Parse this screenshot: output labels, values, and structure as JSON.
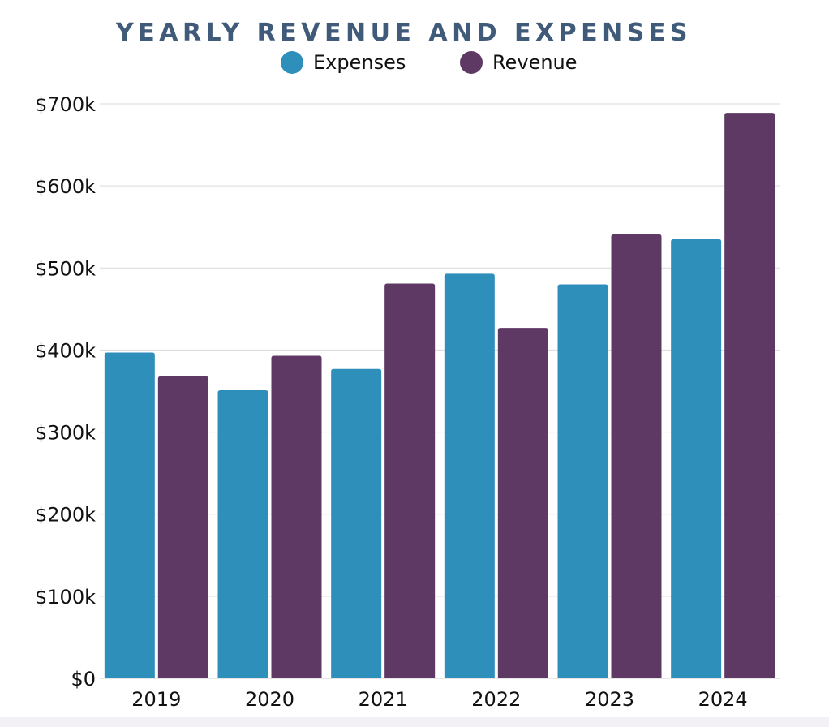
{
  "chart_data": {
    "type": "bar",
    "title": "YEARLY REVENUE AND EXPENSES",
    "categories": [
      "2019",
      "2020",
      "2021",
      "2022",
      "2023",
      "2024"
    ],
    "series": [
      {
        "name": "Expenses",
        "color": "#2e8fba",
        "values": [
          397,
          351,
          377,
          493,
          480,
          535
        ]
      },
      {
        "name": "Revenue",
        "color": "#5d3963",
        "values": [
          368,
          393,
          481,
          427,
          541,
          689
        ]
      }
    ],
    "y_tick_labels": [
      "$0",
      "$100k",
      "$200k",
      "$300k",
      "$400k",
      "$500k",
      "$600k",
      "$700k"
    ],
    "y_ticks": [
      0,
      100,
      200,
      300,
      400,
      500,
      600,
      700
    ],
    "ylim": [
      0,
      700
    ],
    "y_unit": "thousands of dollars",
    "xlabel": "",
    "ylabel": "",
    "grid": true,
    "legend_position": "top-center",
    "title_color": "#405a7a"
  }
}
